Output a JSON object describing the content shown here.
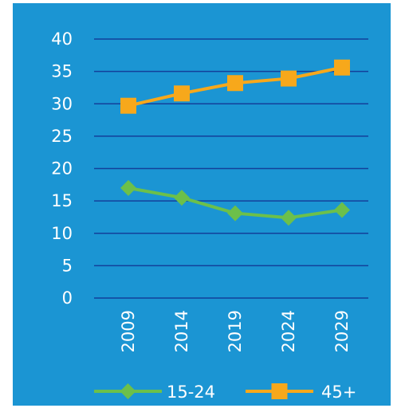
{
  "chart_data": {
    "type": "line",
    "title": "",
    "xlabel": "",
    "ylabel": "",
    "categories": [
      "2009",
      "2014",
      "2019",
      "2024",
      "2029"
    ],
    "ylim": [
      0,
      40
    ],
    "yticks": [
      "0",
      "5",
      "10",
      "15",
      "20",
      "25",
      "30",
      "35",
      "40"
    ],
    "grid": true,
    "legend_position": "bottom",
    "background_color": "#1b95d3",
    "gridline_color": "#13409a",
    "series": [
      {
        "name": "15-24",
        "values": [
          17.0,
          15.5,
          13.1,
          12.4,
          13.6
        ],
        "color": "#6cc04a",
        "marker": "diamond"
      },
      {
        "name": "45+",
        "values": [
          29.7,
          31.6,
          33.2,
          33.9,
          35.6
        ],
        "color": "#f7a81b",
        "marker": "square"
      }
    ]
  }
}
